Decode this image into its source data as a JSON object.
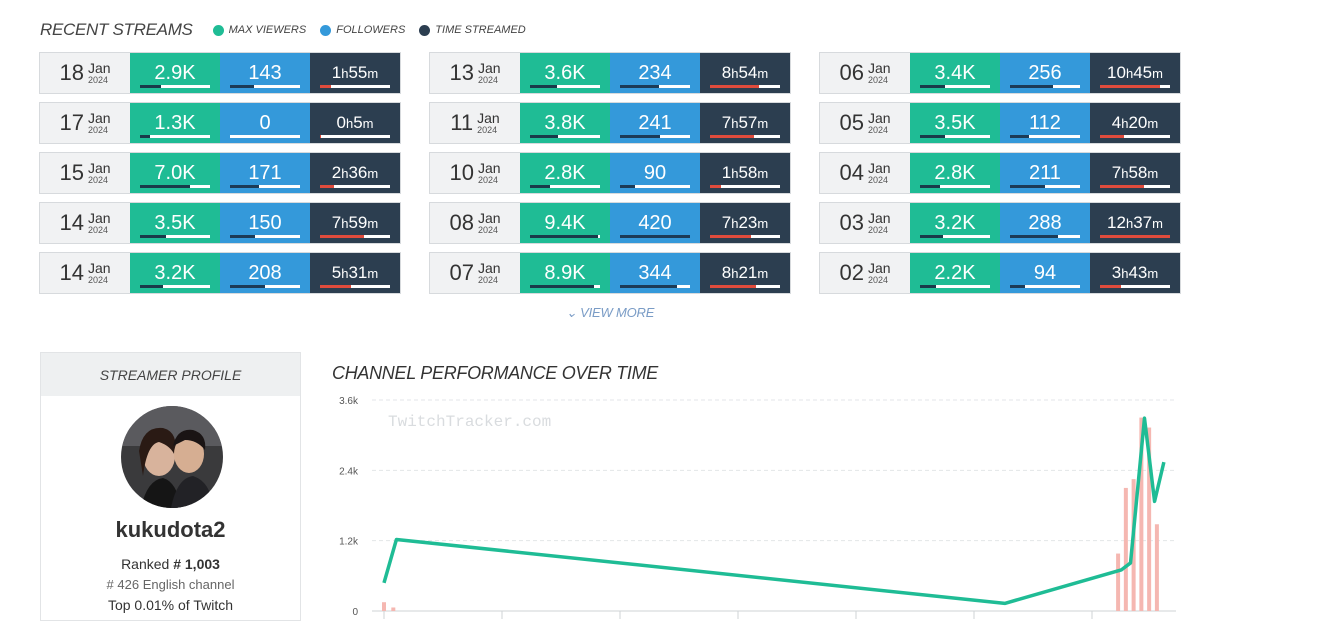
{
  "recent_streams": {
    "title": "RECENT STREAMS",
    "legend": [
      {
        "label": "MAX VIEWERS",
        "color": "#1fbc95"
      },
      {
        "label": "FOLLOWERS",
        "color": "#3499da"
      },
      {
        "label": "TIME STREAMED",
        "color": "#2c3e50"
      }
    ],
    "columns": [
      [
        {
          "day": "18",
          "month": "Jan",
          "year": "2024",
          "viewers": "2.9K",
          "followers": "143",
          "hours": "1",
          "minutes": "55",
          "v_frac": 0.3,
          "f_frac": 0.34,
          "t_frac": 0.15
        },
        {
          "day": "17",
          "month": "Jan",
          "year": "2024",
          "viewers": "1.3K",
          "followers": "0",
          "hours": "0",
          "minutes": "5",
          "v_frac": 0.14,
          "f_frac": 0.0,
          "t_frac": 0.01
        },
        {
          "day": "15",
          "month": "Jan",
          "year": "2024",
          "viewers": "7.0K",
          "followers": "171",
          "hours": "2",
          "minutes": "36",
          "v_frac": 0.72,
          "f_frac": 0.41,
          "t_frac": 0.2
        },
        {
          "day": "14",
          "month": "Jan",
          "year": "2024",
          "viewers": "3.5K",
          "followers": "150",
          "hours": "7",
          "minutes": "59",
          "v_frac": 0.37,
          "f_frac": 0.36,
          "t_frac": 0.63
        },
        {
          "day": "14",
          "month": "Jan",
          "year": "2024",
          "viewers": "3.2K",
          "followers": "208",
          "hours": "5",
          "minutes": "31",
          "v_frac": 0.33,
          "f_frac": 0.5,
          "t_frac": 0.44
        }
      ],
      [
        {
          "day": "13",
          "month": "Jan",
          "year": "2024",
          "viewers": "3.6K",
          "followers": "234",
          "hours": "8",
          "minutes": "54",
          "v_frac": 0.38,
          "f_frac": 0.56,
          "t_frac": 0.7
        },
        {
          "day": "11",
          "month": "Jan",
          "year": "2024",
          "viewers": "3.8K",
          "followers": "241",
          "hours": "7",
          "minutes": "57",
          "v_frac": 0.4,
          "f_frac": 0.57,
          "t_frac": 0.63
        },
        {
          "day": "10",
          "month": "Jan",
          "year": "2024",
          "viewers": "2.8K",
          "followers": "90",
          "hours": "1",
          "minutes": "58",
          "v_frac": 0.29,
          "f_frac": 0.21,
          "t_frac": 0.15
        },
        {
          "day": "08",
          "month": "Jan",
          "year": "2024",
          "viewers": "9.4K",
          "followers": "420",
          "hours": "7",
          "minutes": "23",
          "v_frac": 0.97,
          "f_frac": 1.0,
          "t_frac": 0.58
        },
        {
          "day": "07",
          "month": "Jan",
          "year": "2024",
          "viewers": "8.9K",
          "followers": "344",
          "hours": "8",
          "minutes": "21",
          "v_frac": 0.92,
          "f_frac": 0.82,
          "t_frac": 0.66
        }
      ],
      [
        {
          "day": "06",
          "month": "Jan",
          "year": "2024",
          "viewers": "3.4K",
          "followers": "256",
          "hours": "10",
          "minutes": "45",
          "v_frac": 0.35,
          "f_frac": 0.61,
          "t_frac": 0.85
        },
        {
          "day": "05",
          "month": "Jan",
          "year": "2024",
          "viewers": "3.5K",
          "followers": "112",
          "hours": "4",
          "minutes": "20",
          "v_frac": 0.36,
          "f_frac": 0.27,
          "t_frac": 0.34
        },
        {
          "day": "04",
          "month": "Jan",
          "year": "2024",
          "viewers": "2.8K",
          "followers": "211",
          "hours": "7",
          "minutes": "58",
          "v_frac": 0.29,
          "f_frac": 0.5,
          "t_frac": 0.63
        },
        {
          "day": "03",
          "month": "Jan",
          "year": "2024",
          "viewers": "3.2K",
          "followers": "288",
          "hours": "12",
          "minutes": "37",
          "v_frac": 0.33,
          "f_frac": 0.69,
          "t_frac": 1.0
        },
        {
          "day": "02",
          "month": "Jan",
          "year": "2024",
          "viewers": "2.2K",
          "followers": "94",
          "hours": "3",
          "minutes": "43",
          "v_frac": 0.23,
          "f_frac": 0.22,
          "t_frac": 0.3
        }
      ]
    ],
    "view_more": "VIEW MORE"
  },
  "profile": {
    "header": "STREAMER PROFILE",
    "name": "kukudota2",
    "ranked_label": "Ranked",
    "rank": "# 1,003",
    "channel_rank": "# 426",
    "channel_label": "English channel",
    "top_text": "Top 0.01% of Twitch"
  },
  "chart": {
    "title": "CHANNEL PERFORMANCE OVER TIME",
    "watermark": "TwitchTracker.com"
  },
  "chart_data": {
    "type": "line",
    "title": "CHANNEL PERFORMANCE OVER TIME",
    "xlabel": "",
    "ylabel": "",
    "ylim": [
      0,
      3600
    ],
    "y_ticks": [
      "0",
      "1.2k",
      "2.4k",
      "3.6k"
    ],
    "y_tick_values": [
      0,
      1200,
      2400,
      3600
    ],
    "grid": true,
    "x_range": [
      0,
      100
    ],
    "series": [
      {
        "color": "#1fbc95",
        "kind": "line",
        "x": [
          0,
          1.6,
          80.0,
          95.0,
          96.2,
          98.0,
          99.3,
          100.5
        ],
        "y": [
          480,
          1220,
          130,
          700,
          820,
          3290,
          1870,
          2540
        ]
      },
      {
        "color": "#f5b7b1",
        "kind": "bar",
        "x": [
          0,
          1.2,
          94.6,
          95.6,
          96.6,
          97.6,
          98.6,
          99.6
        ],
        "y": [
          150,
          60,
          980,
          2100,
          2250,
          3300,
          3130,
          1480
        ]
      }
    ]
  }
}
